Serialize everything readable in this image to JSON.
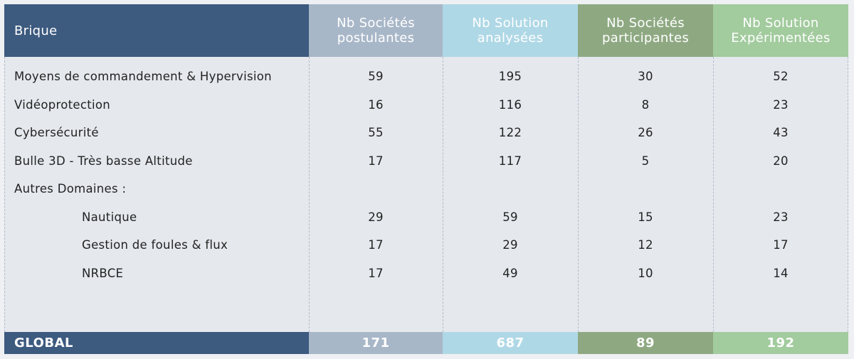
{
  "table": {
    "header": [
      "Brique",
      [
        "Nb Sociétés",
        "postulantes"
      ],
      [
        "Nb Solution",
        "analysées"
      ],
      [
        "Nb Sociétés",
        "participantes"
      ],
      [
        "Nb Solution",
        "Expérimentées"
      ]
    ],
    "rows": [
      {
        "label": "Moyens de commandement & Hypervision",
        "values": [
          59,
          195,
          30,
          52
        ]
      },
      {
        "label": "Vidéoprotection",
        "values": [
          16,
          116,
          8,
          23
        ]
      },
      {
        "label": "Cybersécurité",
        "values": [
          55,
          122,
          26,
          43
        ]
      },
      {
        "label": "Bulle 3D - Très basse Altitude",
        "values": [
          17,
          117,
          5,
          20
        ]
      },
      {
        "label": "Autres Domaines :",
        "children": [
          {
            "label": "Nautique",
            "values": [
              29,
              59,
              15,
              23
            ]
          },
          {
            "label": "Gestion de foules & flux",
            "values": [
              17,
              29,
              12,
              17
            ]
          },
          {
            "label": "NRBCE",
            "values": [
              17,
              49,
              10,
              14
            ]
          }
        ]
      }
    ],
    "footer": {
      "label": "GLOBAL",
      "values": [
        171,
        687,
        89,
        192
      ]
    }
  }
}
